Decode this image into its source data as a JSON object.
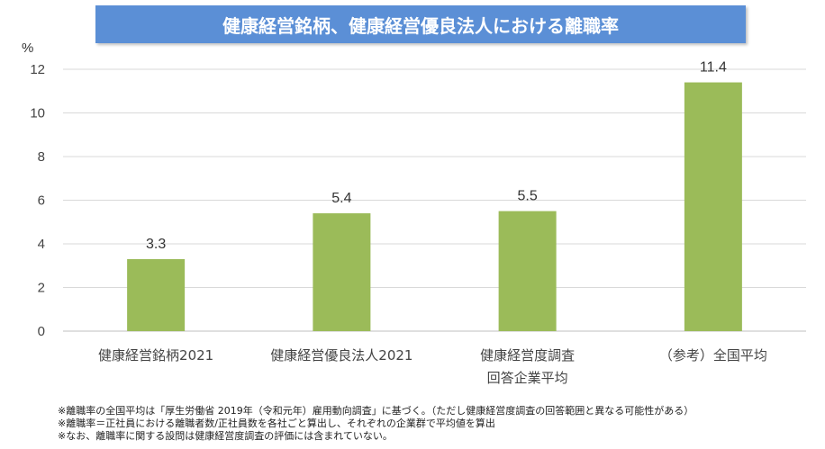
{
  "chart_data": {
    "type": "bar",
    "title": "健康経営銘柄、健康経営優良法人における離職率",
    "ylabel": "%",
    "xlabel": "",
    "ylim": [
      0,
      12
    ],
    "yticks": [
      0,
      2,
      4,
      6,
      8,
      10,
      12
    ],
    "grid": true,
    "legend": "none",
    "bar_color": "#9bbb59",
    "categories": [
      [
        "健康経営銘柄2021"
      ],
      [
        "健康経営優良法人2021"
      ],
      [
        "健康経営度調査",
        "回答企業平均"
      ],
      [
        "（参考）全国平均"
      ]
    ],
    "values": [
      3.3,
      5.4,
      5.5,
      11.4
    ],
    "value_labels": [
      "3.3",
      "5.4",
      "5.5",
      "11.4"
    ]
  },
  "notes": [
    "※離職率の全国平均は「厚生労働省 2019年（令和元年）雇用動向調査」に基づく。（ただし健康経営度調査の回答範囲と異なる可能性がある）",
    "※離職率＝正社員における離職者数/正社員数を各社ごと算出し、それぞれの企業群で平均値を算出",
    "※なお、離職率に関する設問は健康経営度調査の評価には含まれていない。"
  ]
}
